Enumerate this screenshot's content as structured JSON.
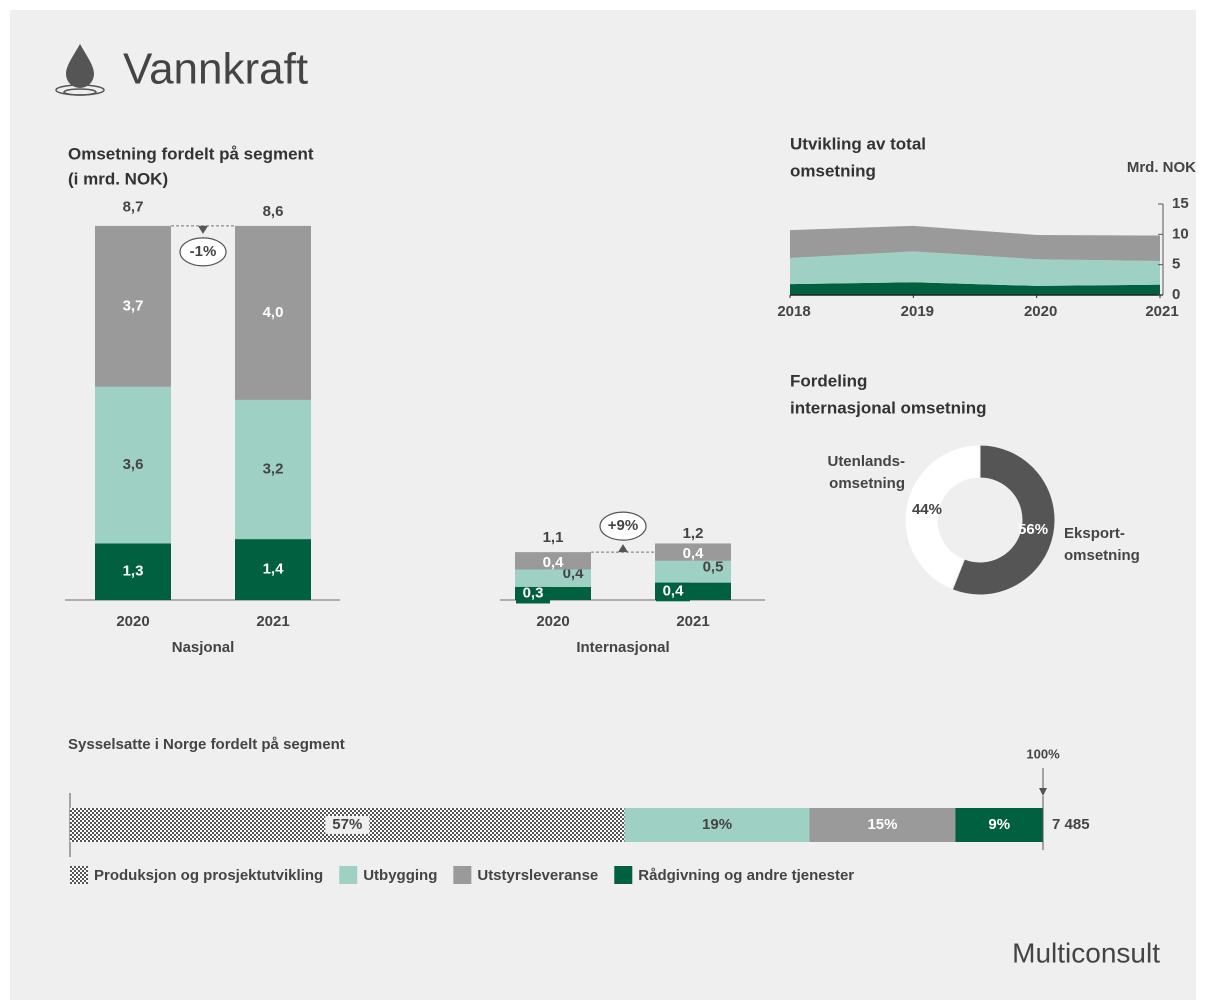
{
  "title": "Vannkraft",
  "logo": "Multiconsult",
  "chart_data": [
    {
      "type": "stacked_bar",
      "title": "Omsetning fordelt på segment",
      "subtitle": "(i mrd. NOK)",
      "xlabel": "Nasjonal",
      "categories": [
        "2020",
        "2021"
      ],
      "series": [
        {
          "color": "#00603f",
          "values": [
            1.3,
            1.4
          ],
          "value_labels": [
            "1,3",
            "1,4"
          ]
        },
        {
          "color": "#9fd0c4",
          "values": [
            3.6,
            3.2
          ],
          "value_labels": [
            "3,6",
            "3,2"
          ]
        },
        {
          "color": "#9a9a9a",
          "values": [
            3.7,
            4.0
          ],
          "value_labels": [
            "3,7",
            "4,0"
          ]
        }
      ],
      "totals": {
        "values": [
          8.7,
          8.6
        ],
        "value_labels": [
          "8,7",
          "8,6"
        ]
      },
      "change": {
        "value": -1,
        "label": "-1%"
      }
    },
    {
      "type": "stacked_bar",
      "xlabel": "Internasjonal",
      "categories": [
        "2020",
        "2021"
      ],
      "series": [
        {
          "color": "#00603f",
          "values": [
            0.3,
            0.4
          ],
          "value_labels": [
            "0,3",
            "0,4"
          ]
        },
        {
          "color": "#9fd0c4",
          "values": [
            0.4,
            0.5
          ],
          "value_labels": [
            "0,4",
            "0,5"
          ]
        },
        {
          "color": "#9a9a9a",
          "values": [
            0.4,
            0.4
          ],
          "value_labels": [
            "0,4",
            "0,4"
          ]
        }
      ],
      "totals": {
        "values": [
          1.1,
          1.2
        ],
        "value_labels": [
          "1,1",
          "1,2"
        ]
      },
      "change": {
        "value": 9,
        "label": "+9%"
      }
    },
    {
      "type": "area",
      "title": [
        "Utvikling av total",
        "omsetning"
      ],
      "ylabel": "Mrd. NOK",
      "stacked": true,
      "x": [
        2018,
        2019,
        2020,
        2021
      ],
      "xlim": [
        2018,
        2021
      ],
      "xticks": [
        2018,
        2019,
        2020,
        2021
      ],
      "ylim": [
        0,
        15
      ],
      "yticks": [
        0,
        5,
        10,
        15
      ],
      "series": [
        {
          "color": "#00603f",
          "values": [
            1.8,
            2.1,
            1.5,
            1.7
          ]
        },
        {
          "color": "#9fd0c4",
          "values": [
            4.3,
            5.1,
            4.4,
            3.9
          ]
        },
        {
          "color": "#9a9a9a",
          "values": [
            4.6,
            4.2,
            4.0,
            4.2
          ]
        }
      ]
    },
    {
      "type": "donut",
      "title": [
        "Fordeling",
        "internasjonal omsetning"
      ],
      "categories": [
        [
          "Utenlands-",
          "omsetning"
        ],
        [
          "Eksport-",
          "omsetning"
        ]
      ],
      "values": [
        44,
        56
      ],
      "value_labels": [
        "44%",
        "56%"
      ],
      "colors": [
        "#ffffff",
        "#555555"
      ]
    },
    {
      "type": "stacked_hbar",
      "title": "Sysselsatte i Norge fordelt på segment",
      "series": [
        {
          "name": "Produksjon og prosjektutvikling",
          "color": "#555555",
          "pattern": "checker",
          "values": [
            57
          ],
          "value_labels": [
            "57%"
          ]
        },
        {
          "name": "Utbygging",
          "color": "#9fd0c4",
          "values": [
            19
          ],
          "value_labels": [
            "19%"
          ]
        },
        {
          "name": "Utstyrsleveranse",
          "color": "#9a9a9a",
          "values": [
            15
          ],
          "value_labels": [
            "15%"
          ]
        },
        {
          "name": "Rådgivning og andre tjenester",
          "color": "#00603f",
          "values": [
            9
          ],
          "value_labels": [
            "9%"
          ]
        }
      ],
      "total": "7 485",
      "marker": {
        "value": 100,
        "label": "100%"
      }
    }
  ]
}
